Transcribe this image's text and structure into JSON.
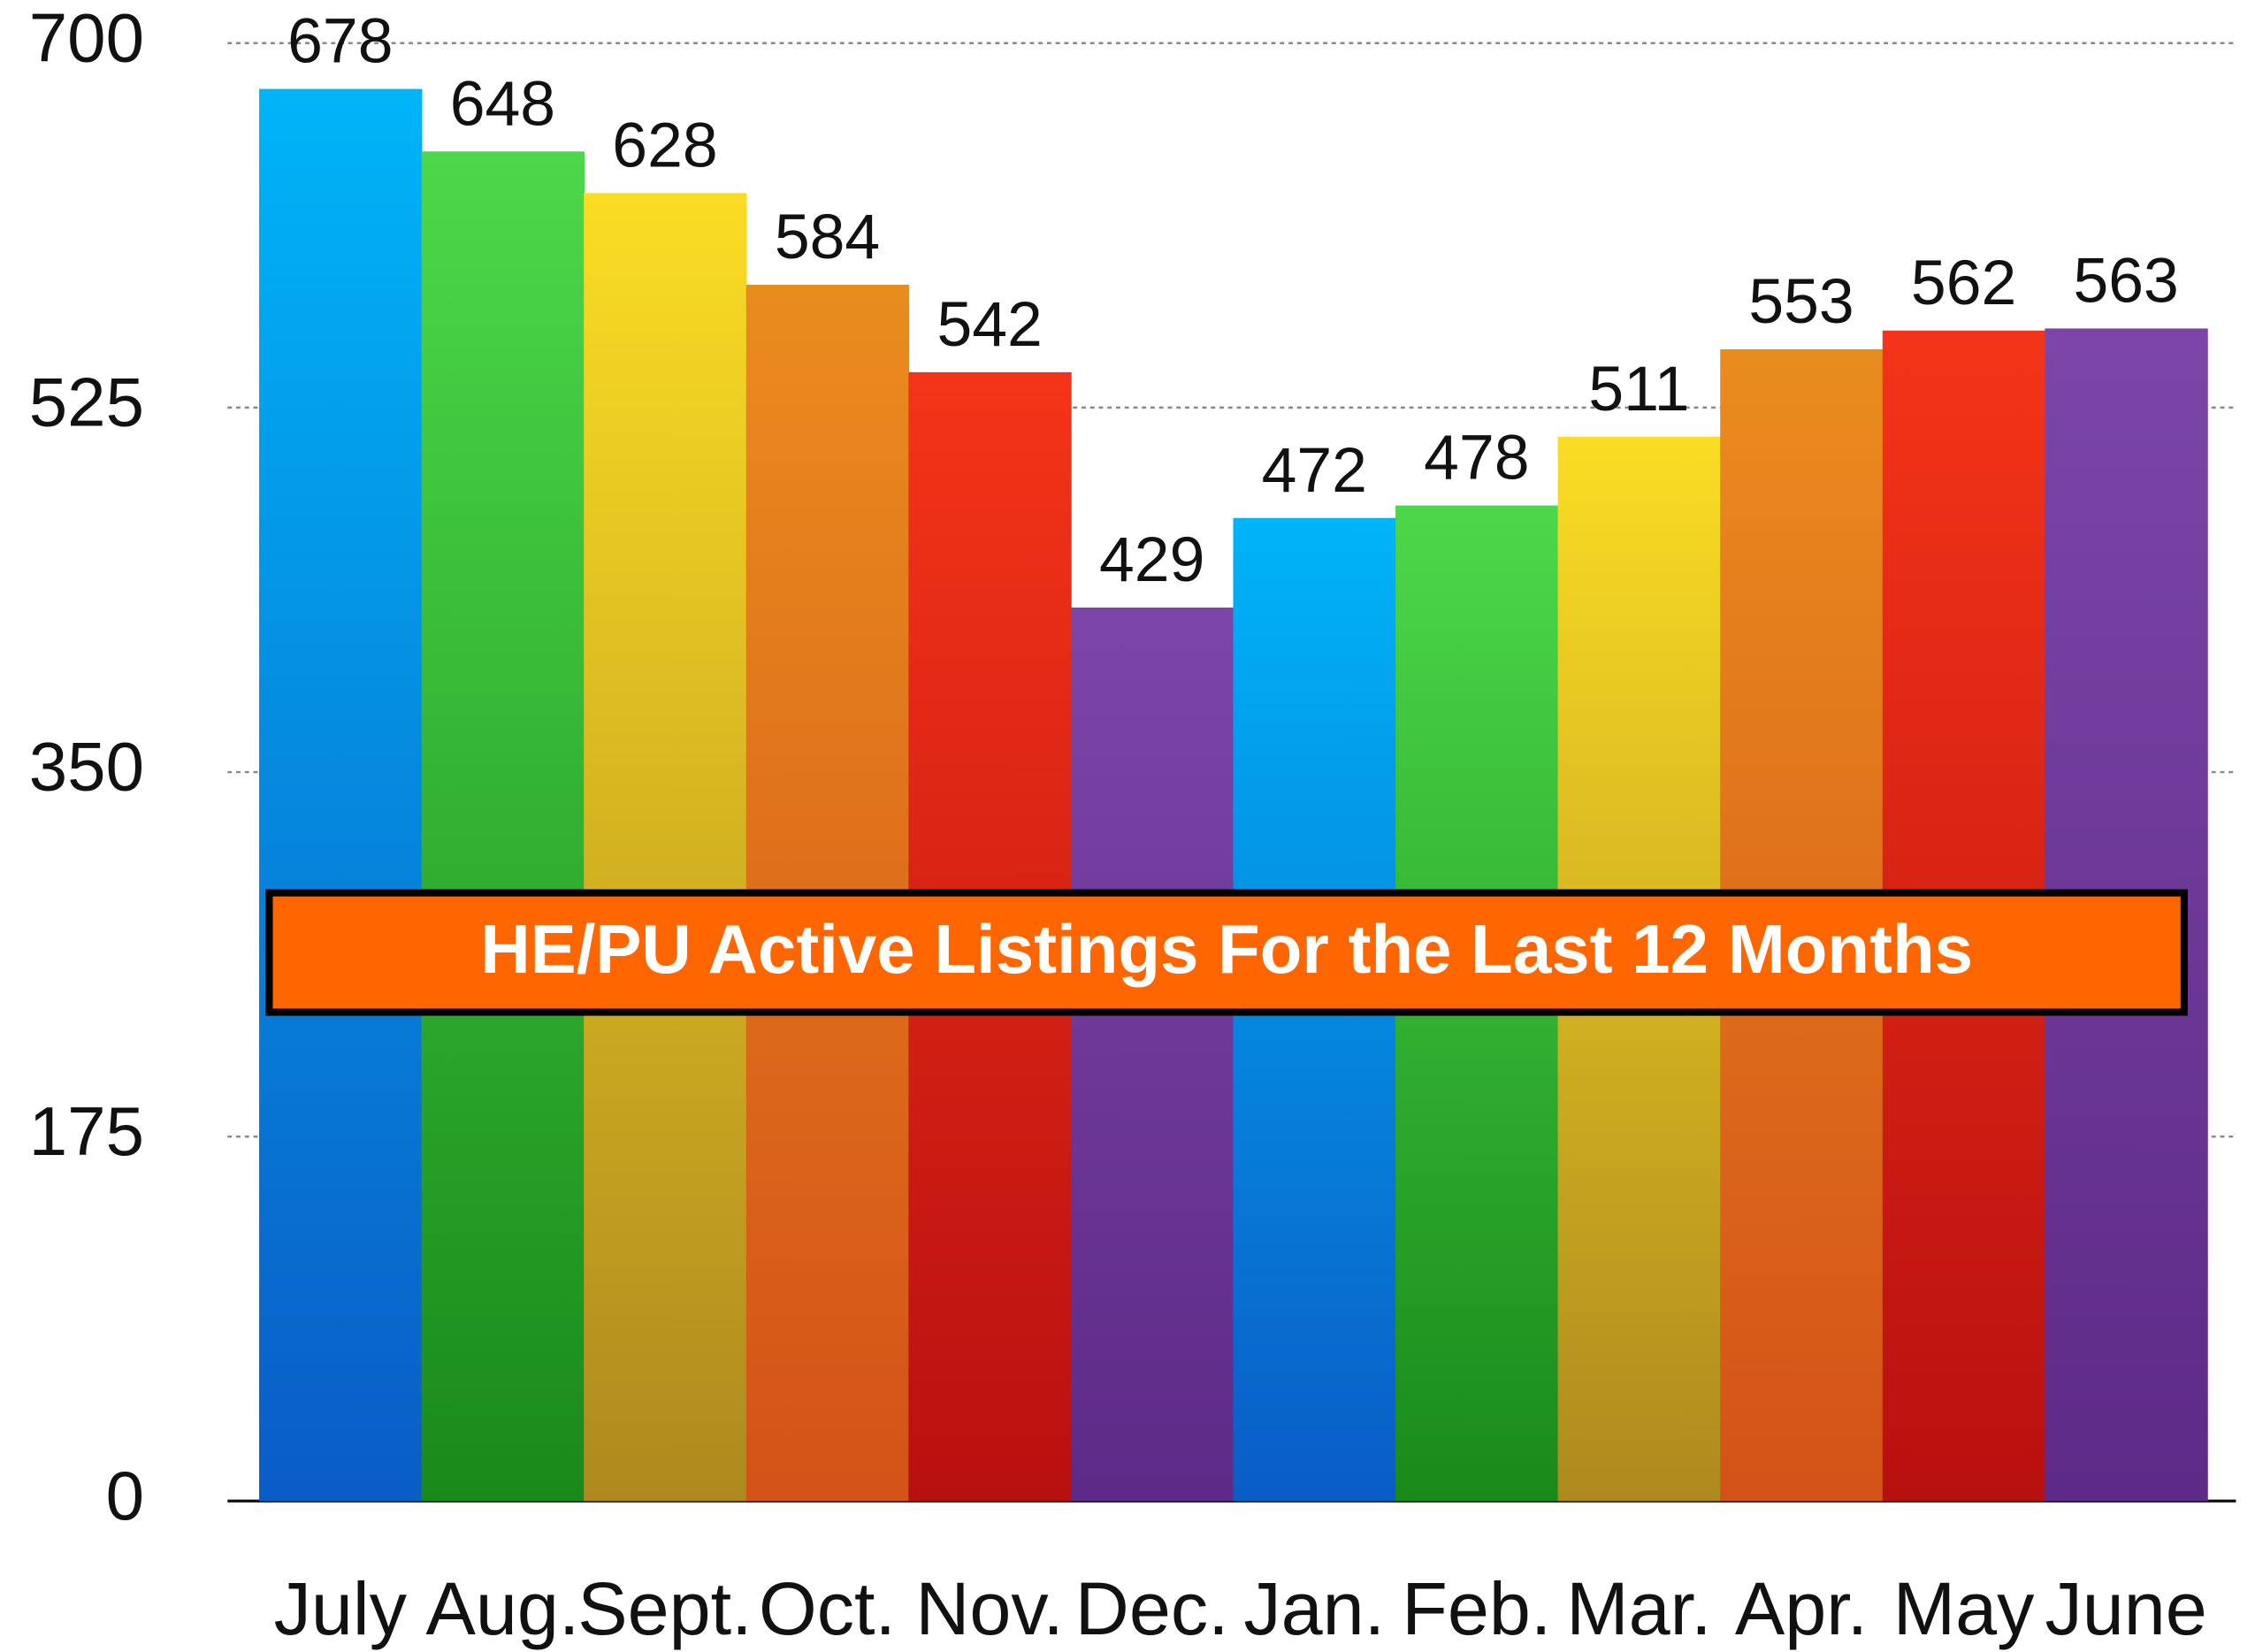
{
  "chart_data": {
    "type": "bar",
    "title": "HE/PU Active Listings For the Last 12 Months",
    "categories": [
      "July",
      "Aug.",
      "Sept.",
      "Oct.",
      "Nov.",
      "Dec.",
      "Jan.",
      "Feb.",
      "Mar.",
      "Apr.",
      "May",
      "June"
    ],
    "values": [
      678,
      648,
      628,
      584,
      542,
      429,
      472,
      478,
      511,
      553,
      562,
      563
    ],
    "colors": [
      [
        "#00b4f8",
        "#0a5cc6"
      ],
      [
        "#4cd84a",
        "#198a1a"
      ],
      [
        "#fadc24",
        "#ae8a1e"
      ],
      [
        "#e98c1e",
        "#d45218"
      ],
      [
        "#f43418",
        "#b81010"
      ],
      [
        "#7b46a8",
        "#5e2a88"
      ],
      [
        "#00b4f8",
        "#0a5cc6"
      ],
      [
        "#4cd84a",
        "#198a1a"
      ],
      [
        "#fadc24",
        "#ae8a1e"
      ],
      [
        "#e98c1e",
        "#d45218"
      ],
      [
        "#f43418",
        "#b81010"
      ],
      [
        "#7b46a8",
        "#5e2a88"
      ]
    ],
    "ylim": [
      0,
      700
    ],
    "yticks": [
      0,
      175,
      350,
      525,
      700
    ],
    "grid": true
  }
}
